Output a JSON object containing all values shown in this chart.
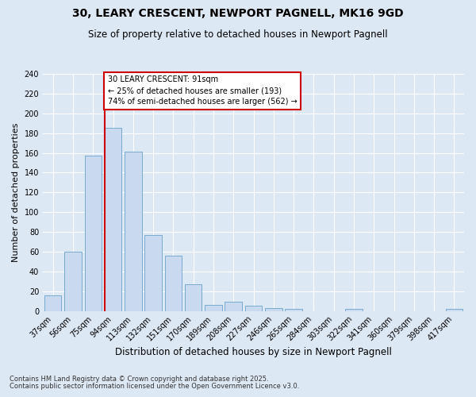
{
  "title": "30, LEARY CRESCENT, NEWPORT PAGNELL, MK16 9GD",
  "subtitle": "Size of property relative to detached houses in Newport Pagnell",
  "xlabel": "Distribution of detached houses by size in Newport Pagnell",
  "ylabel": "Number of detached properties",
  "categories": [
    "37sqm",
    "56sqm",
    "75sqm",
    "94sqm",
    "113sqm",
    "132sqm",
    "151sqm",
    "170sqm",
    "189sqm",
    "208sqm",
    "227sqm",
    "246sqm",
    "265sqm",
    "284sqm",
    "303sqm",
    "322sqm",
    "341sqm",
    "360sqm",
    "379sqm",
    "398sqm",
    "417sqm"
  ],
  "values": [
    16,
    60,
    157,
    185,
    161,
    77,
    56,
    27,
    6,
    9,
    5,
    3,
    2,
    0,
    0,
    2,
    0,
    0,
    0,
    0,
    2
  ],
  "bar_color": "#c9d9f0",
  "bar_edge_color": "#7aaad0",
  "ylim": [
    0,
    240
  ],
  "yticks": [
    0,
    20,
    40,
    60,
    80,
    100,
    120,
    140,
    160,
    180,
    200,
    220,
    240
  ],
  "vline_color": "#cc0000",
  "annotation_line1": "30 LEARY CRESCENT: 91sqm",
  "annotation_line2": "← 25% of detached houses are smaller (193)",
  "annotation_line3": "74% of semi-detached houses are larger (562) →",
  "annotation_box_color": "#ffffff",
  "annotation_box_edge": "#cc0000",
  "footnote1": "Contains HM Land Registry data © Crown copyright and database right 2025.",
  "footnote2": "Contains public sector information licensed under the Open Government Licence v3.0.",
  "background_color": "#dde8f5",
  "title_fontsize": 10,
  "subtitle_fontsize": 8.5,
  "xlabel_fontsize": 8.5,
  "ylabel_fontsize": 8,
  "tick_fontsize": 7,
  "annotation_fontsize": 7,
  "footnote_fontsize": 6
}
